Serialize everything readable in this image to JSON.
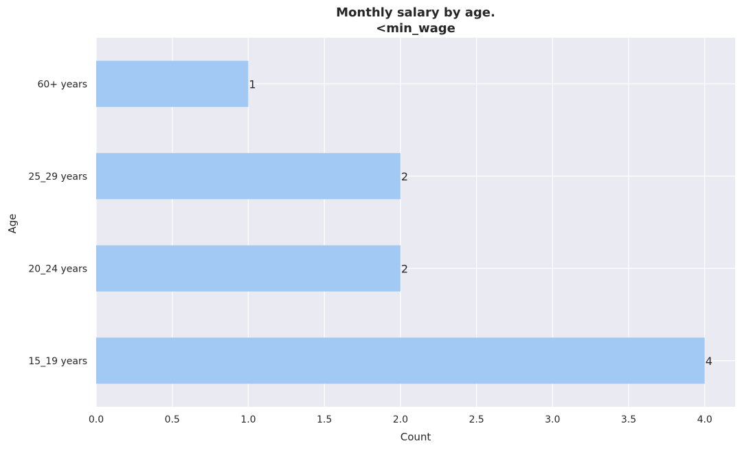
{
  "chart_data": {
    "type": "bar",
    "orientation": "horizontal",
    "title": "Monthly salary by age.",
    "subtitle": "<min_wage",
    "xlabel": "Count",
    "ylabel": "Age",
    "categories": [
      "15_19 years",
      "20_24 years",
      "25_29 years",
      "60+ years"
    ],
    "values": [
      4,
      2,
      2,
      1
    ],
    "data_labels": [
      "4",
      "2",
      "2",
      "1"
    ],
    "xlim": [
      0,
      4.2
    ],
    "xticks": [
      0,
      0.5,
      1,
      1.5,
      2,
      2.5,
      3,
      3.5,
      4
    ],
    "xtick_labels": [
      "0.0",
      "0.5",
      "1.0",
      "1.5",
      "2.0",
      "2.5",
      "3.0",
      "3.5",
      "4.0"
    ],
    "grid": true,
    "colors": {
      "background": "#eaeaf2",
      "bar": "#a1c9f4",
      "grid": "#ffffff",
      "text": "#262626"
    }
  }
}
